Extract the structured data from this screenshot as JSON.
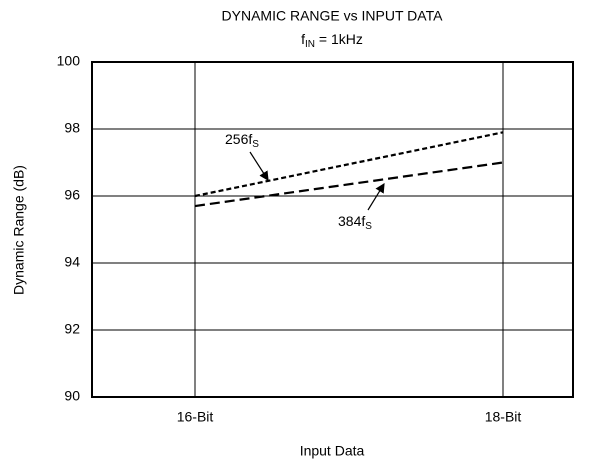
{
  "chart_data": {
    "type": "line",
    "title": "DYNAMIC RANGE vs INPUT DATA",
    "subtitle": {
      "text": "f",
      "subscript": "IN",
      "rest": " = 1kHz"
    },
    "x_label": "Input Data",
    "y_label": "Dynamic Range (dB)",
    "categories": [
      "16-Bit",
      "18-Bit"
    ],
    "series": [
      {
        "name": "256f",
        "name_subscript": "S",
        "color": "#000000",
        "dash": "short",
        "values": [
          96.0,
          97.9
        ]
      },
      {
        "name": "384f",
        "name_subscript": "S",
        "color": "#000000",
        "dash": "long",
        "values": [
          95.7,
          97.0
        ]
      }
    ],
    "ylim": [
      90,
      100
    ],
    "yticks": [
      90,
      92,
      94,
      96,
      98,
      100
    ],
    "grid": true
  }
}
